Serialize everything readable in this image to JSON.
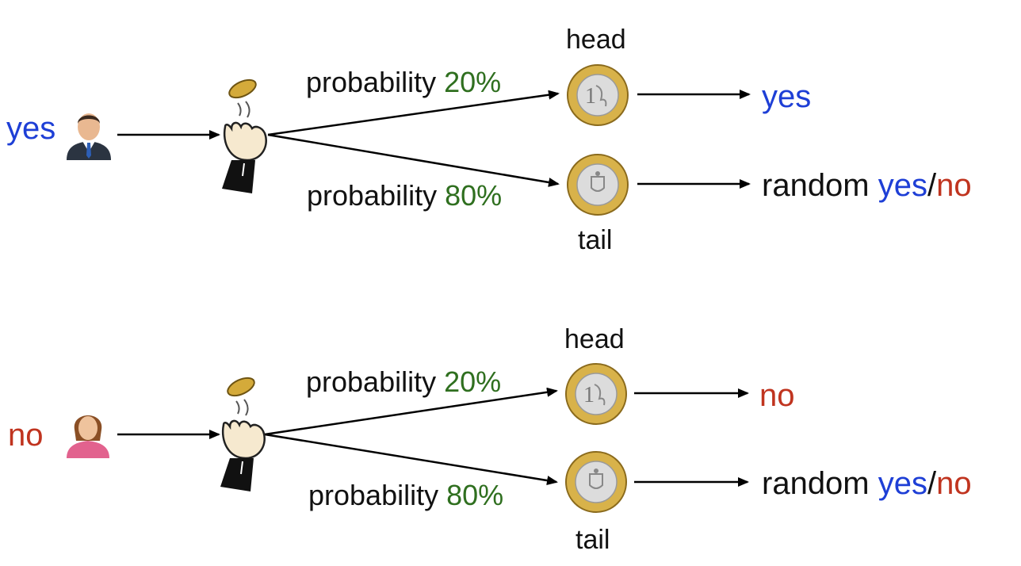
{
  "colors": {
    "yes": "#1e3fd6",
    "no": "#c0341f",
    "percent": "#2f6f1f",
    "text": "#111111"
  },
  "scenarios": [
    {
      "answer": "yes",
      "person_icon": "businessman-icon",
      "branches": [
        {
          "prob_label": "probability",
          "prob_value": "20%",
          "coin_side": "head",
          "outcome": "yes"
        },
        {
          "prob_label": "probability",
          "prob_value": "80%",
          "coin_side": "tail",
          "outcome_prefix": "random",
          "outcome_yes": "yes",
          "outcome_sep": "/",
          "outcome_no": "no"
        }
      ]
    },
    {
      "answer": "no",
      "person_icon": "woman-icon",
      "branches": [
        {
          "prob_label": "probability",
          "prob_value": "20%",
          "coin_side": "head",
          "outcome": "no"
        },
        {
          "prob_label": "probability",
          "prob_value": "80%",
          "coin_side": "tail",
          "outcome_prefix": "random",
          "outcome_yes": "yes",
          "outcome_sep": "/",
          "outcome_no": "no"
        }
      ]
    }
  ],
  "icons": [
    "coin-toss-hand-icon",
    "coin-head-icon",
    "coin-tail-icon"
  ]
}
